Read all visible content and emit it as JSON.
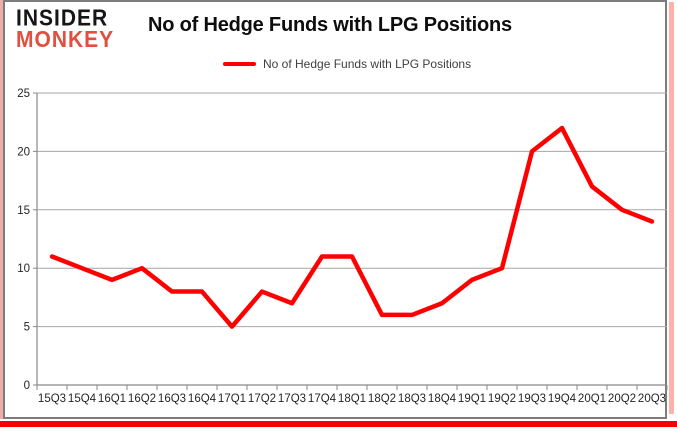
{
  "logo": {
    "line1": "INSIDER",
    "line2": "MONKEY"
  },
  "header": {
    "title": "No of Hedge Funds with LPG Positions"
  },
  "legend": {
    "label": "No of Hedge Funds with LPG Positions",
    "marker_color": "#ff0000"
  },
  "colors": {
    "series": "#ff0000",
    "gridline": "#a6a6a6",
    "axis": "#898989",
    "tick": "#898989",
    "axis_text": "#262626",
    "frame_border": "#7c7c7c",
    "left_edge": "#f0adad",
    "right_edge": "#ffb0a8",
    "bottom_stripe": "#f60000",
    "logo_black": "#161616",
    "logo_red": "#e04f3f"
  },
  "chart_data": {
    "type": "line",
    "title": "No of Hedge Funds with LPG Positions",
    "categories": [
      "15Q3",
      "15Q4",
      "16Q1",
      "16Q2",
      "16Q3",
      "16Q4",
      "17Q1",
      "17Q2",
      "17Q3",
      "17Q4",
      "18Q1",
      "18Q2",
      "18Q3",
      "18Q4",
      "19Q1",
      "19Q2",
      "19Q3",
      "19Q4",
      "20Q1",
      "20Q2",
      "20Q3"
    ],
    "series": [
      {
        "name": "No of Hedge Funds with LPG Positions",
        "color": "#ff0000",
        "values": [
          11,
          10,
          9,
          10,
          8,
          8,
          5,
          8,
          7,
          11,
          11,
          6,
          6,
          7,
          9,
          10,
          20,
          22,
          17,
          15,
          14
        ]
      }
    ],
    "xlabel": "",
    "ylabel": "",
    "ylim": [
      0,
      25
    ],
    "yticks": [
      0,
      5,
      10,
      15,
      20,
      25
    ],
    "grid": true,
    "legend_position": "top-center"
  }
}
